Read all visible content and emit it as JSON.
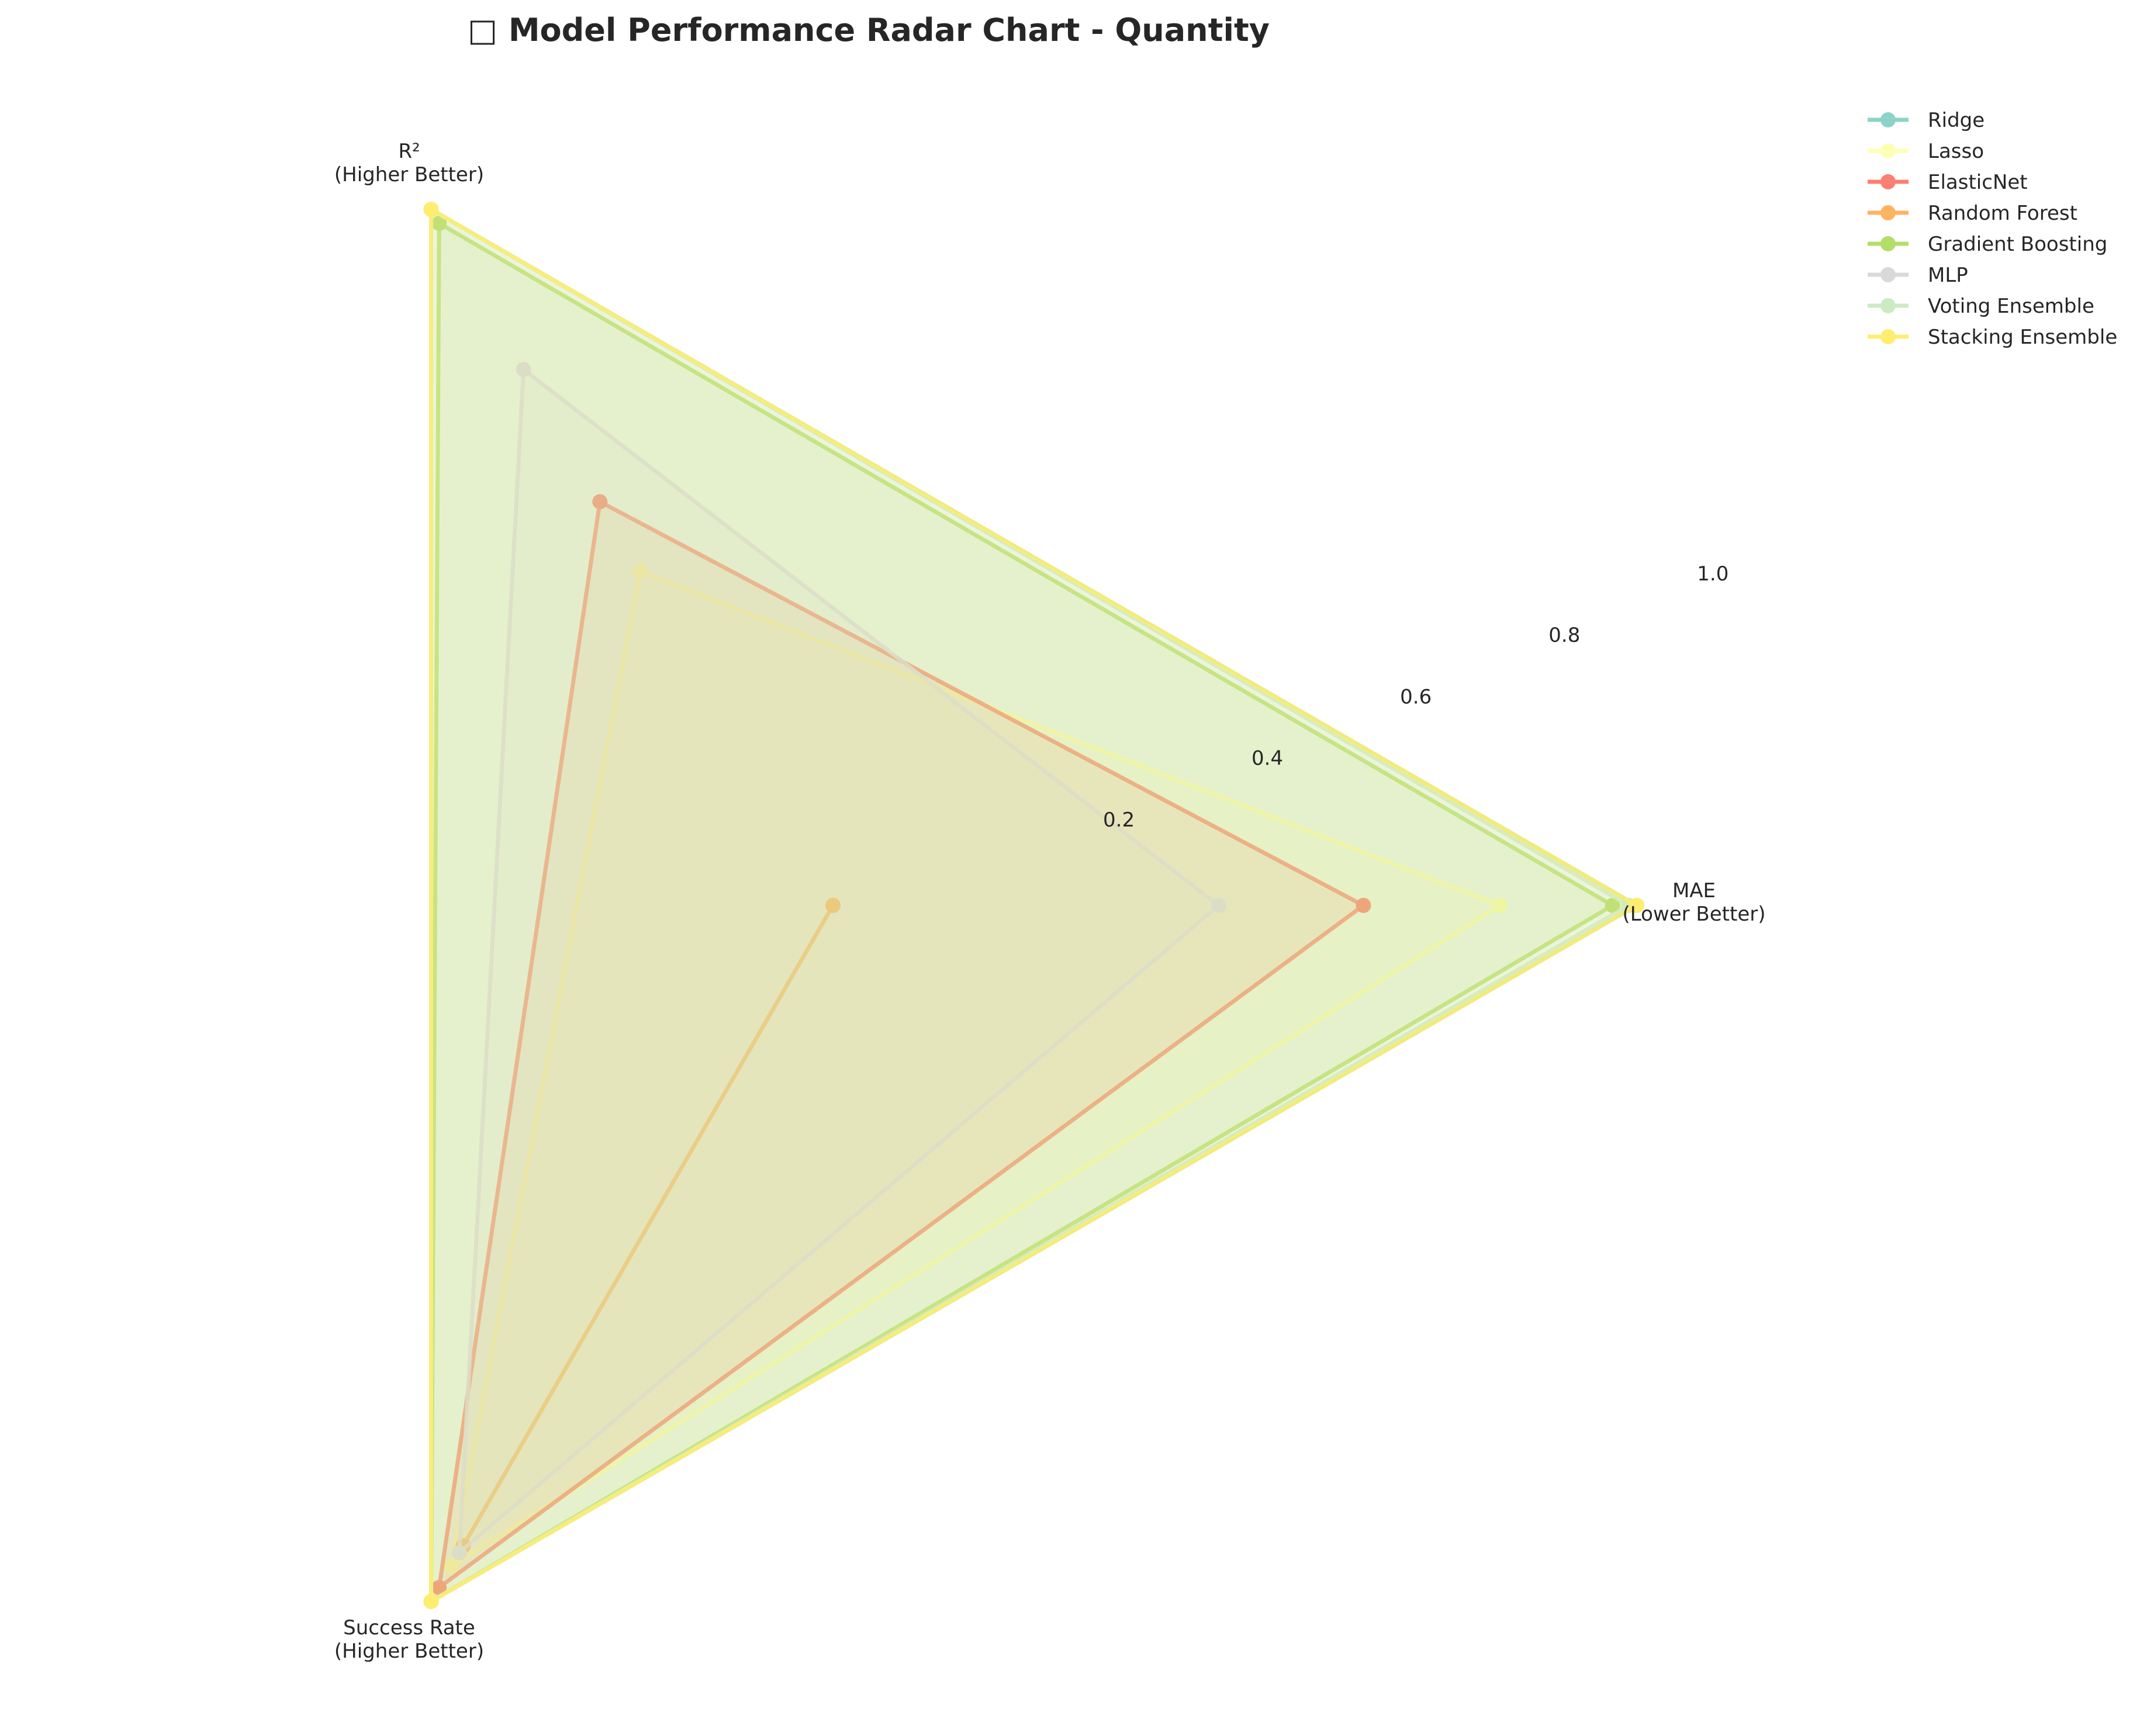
{
  "chart_data": {
    "type": "radar",
    "title": "□ Model Performance Radar Chart - Quantity",
    "axes": [
      {
        "label": "MAE",
        "sublabel": "(Lower Better)"
      },
      {
        "label": "R²",
        "sublabel": "(Higher Better)"
      },
      {
        "label": "Success Rate",
        "sublabel": "(Higher Better)"
      }
    ],
    "radial_ticks": [
      "0.2",
      "0.4",
      "0.6",
      "0.8",
      "1.0"
    ],
    "radial_range": [
      0,
      1
    ],
    "grid": false,
    "legend_position": "top-right",
    "series": [
      {
        "name": "Ridge",
        "color": "#8dd3c7",
        "values": [
          1.0,
          1.0,
          1.0
        ]
      },
      {
        "name": "Lasso",
        "color": "#ffffb3",
        "values": [
          0.83,
          0.48,
          0.95
        ]
      },
      {
        "name": "ElasticNet",
        "color": "#fb8072",
        "values": [
          0.66,
          0.58,
          0.98
        ]
      },
      {
        "name": "Random Forest",
        "color": "#fdb462",
        "values": [
          0.0,
          0.0,
          0.92
        ]
      },
      {
        "name": "Gradient Boosting",
        "color": "#b3de69",
        "values": [
          0.97,
          0.98,
          1.0
        ]
      },
      {
        "name": "MLP",
        "color": "#d9d9d9",
        "values": [
          0.48,
          0.77,
          0.93
        ]
      },
      {
        "name": "Voting Ensemble",
        "color": "#ccebc5",
        "values": [
          0.99,
          1.0,
          1.0
        ]
      },
      {
        "name": "Stacking Ensemble",
        "color": "#ffed6f",
        "values": [
          1.0,
          1.0,
          1.0
        ]
      }
    ]
  }
}
